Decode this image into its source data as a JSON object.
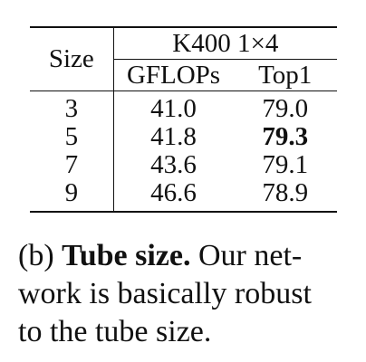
{
  "table": {
    "header": {
      "size_label": "Size",
      "group_label": "K400 1×4",
      "columns": [
        "GFLOPs",
        "Top1"
      ]
    },
    "rows": [
      {
        "size": "3",
        "gflops": "41.0",
        "top1": "79.0",
        "top1_bold": false
      },
      {
        "size": "5",
        "gflops": "41.8",
        "top1": "79.3",
        "top1_bold": true
      },
      {
        "size": "7",
        "gflops": "43.6",
        "top1": "79.1",
        "top1_bold": false
      },
      {
        "size": "9",
        "gflops": "46.6",
        "top1": "78.9",
        "top1_bold": false
      }
    ]
  },
  "caption": {
    "label": "(b)",
    "title": "Tube size.",
    "line1_rest": "Our net-",
    "line2": "work is basically robust",
    "line3": "to the tube size."
  }
}
